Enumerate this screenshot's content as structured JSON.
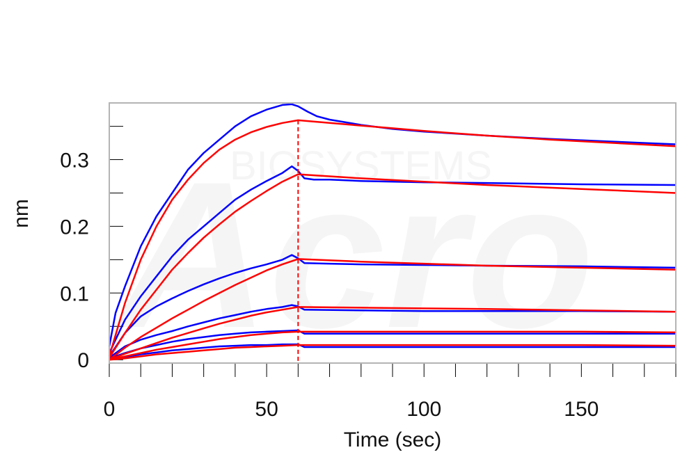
{
  "chart_data": {
    "type": "line",
    "title": "",
    "xlabel": "Time (sec)",
    "ylabel": "nm",
    "xlim": [
      0,
      180
    ],
    "ylim": [
      -0.005,
      0.385
    ],
    "x_ticks": [
      0,
      50,
      100,
      150
    ],
    "x_tick_labels": [
      "0",
      "50",
      "100",
      "150"
    ],
    "x_minor_step": 10,
    "y_ticks": [
      0,
      0.1,
      0.2,
      0.3
    ],
    "y_tick_labels": [
      "0",
      "0.1",
      "0.2",
      "0.3"
    ],
    "y_minor_step": 0.05,
    "association_end": 60,
    "colors": {
      "measured": "#0000ff",
      "fit": "#ff0000",
      "frame": "#b4b4b4"
    },
    "series": [
      {
        "measured": {
          "x": [
            0,
            2,
            5,
            10,
            15,
            20,
            25,
            30,
            35,
            40,
            45,
            50,
            55,
            58,
            60,
            63,
            66,
            70,
            80,
            90,
            100,
            120,
            140,
            160,
            180
          ],
          "y": [
            0.02,
            0.07,
            0.11,
            0.17,
            0.215,
            0.25,
            0.285,
            0.31,
            0.33,
            0.35,
            0.365,
            0.375,
            0.382,
            0.383,
            0.38,
            0.372,
            0.365,
            0.36,
            0.352,
            0.346,
            0.342,
            0.336,
            0.331,
            0.327,
            0.323
          ]
        },
        "fit": {
          "x": [
            0,
            5,
            10,
            15,
            20,
            25,
            30,
            35,
            40,
            45,
            50,
            55,
            60,
            70,
            80,
            90,
            100,
            120,
            140,
            160,
            180
          ],
          "y": [
            0.005,
            0.085,
            0.15,
            0.2,
            0.24,
            0.27,
            0.295,
            0.315,
            0.33,
            0.341,
            0.349,
            0.355,
            0.359,
            0.355,
            0.351,
            0.347,
            0.343,
            0.336,
            0.33,
            0.325,
            0.32
          ]
        }
      },
      {
        "measured": {
          "x": [
            0,
            5,
            10,
            15,
            20,
            25,
            30,
            35,
            40,
            45,
            50,
            55,
            58,
            60,
            62,
            65,
            70,
            80,
            100,
            120,
            150,
            180
          ],
          "y": [
            0.01,
            0.06,
            0.095,
            0.125,
            0.155,
            0.18,
            0.2,
            0.22,
            0.24,
            0.255,
            0.268,
            0.28,
            0.29,
            0.283,
            0.272,
            0.27,
            0.27,
            0.268,
            0.266,
            0.265,
            0.263,
            0.262
          ]
        },
        "fit": {
          "x": [
            0,
            5,
            10,
            15,
            20,
            25,
            30,
            35,
            40,
            45,
            50,
            55,
            60,
            70,
            80,
            100,
            120,
            150,
            180
          ],
          "y": [
            0.003,
            0.04,
            0.075,
            0.105,
            0.135,
            0.16,
            0.183,
            0.203,
            0.222,
            0.238,
            0.253,
            0.267,
            0.278,
            0.275,
            0.272,
            0.267,
            0.262,
            0.256,
            0.25
          ]
        }
      },
      {
        "measured": {
          "x": [
            0,
            5,
            10,
            15,
            20,
            25,
            30,
            35,
            40,
            45,
            50,
            55,
            58,
            60,
            62,
            70,
            80,
            100,
            120,
            150,
            180
          ],
          "y": [
            0.005,
            0.04,
            0.065,
            0.08,
            0.092,
            0.103,
            0.113,
            0.122,
            0.13,
            0.137,
            0.143,
            0.15,
            0.157,
            0.152,
            0.145,
            0.144,
            0.143,
            0.142,
            0.141,
            0.14,
            0.138
          ]
        },
        "fit": {
          "x": [
            0,
            5,
            10,
            15,
            20,
            25,
            30,
            35,
            40,
            45,
            50,
            55,
            60,
            80,
            100,
            120,
            150,
            180
          ],
          "y": [
            0.0,
            0.018,
            0.034,
            0.048,
            0.062,
            0.075,
            0.088,
            0.1,
            0.112,
            0.123,
            0.134,
            0.143,
            0.151,
            0.147,
            0.144,
            0.141,
            0.138,
            0.135
          ]
        }
      },
      {
        "measured": {
          "x": [
            0,
            5,
            10,
            15,
            20,
            25,
            30,
            35,
            40,
            45,
            50,
            55,
            58,
            60,
            62,
            80,
            100,
            120,
            150,
            180
          ],
          "y": [
            0.003,
            0.02,
            0.03,
            0.037,
            0.043,
            0.05,
            0.056,
            0.062,
            0.067,
            0.072,
            0.076,
            0.079,
            0.082,
            0.08,
            0.075,
            0.074,
            0.073,
            0.073,
            0.073,
            0.072
          ]
        },
        "fit": {
          "x": [
            0,
            5,
            10,
            15,
            20,
            25,
            30,
            35,
            40,
            45,
            50,
            55,
            60,
            80,
            100,
            120,
            150,
            180
          ],
          "y": [
            0.0,
            0.009,
            0.017,
            0.025,
            0.033,
            0.04,
            0.047,
            0.054,
            0.06,
            0.066,
            0.071,
            0.075,
            0.079,
            0.078,
            0.077,
            0.076,
            0.074,
            0.072
          ]
        }
      },
      {
        "measured": {
          "x": [
            0,
            5,
            10,
            15,
            20,
            25,
            30,
            35,
            40,
            45,
            50,
            55,
            60,
            62,
            80,
            100,
            120,
            150,
            180
          ],
          "y": [
            0.002,
            0.01,
            0.017,
            0.022,
            0.027,
            0.031,
            0.034,
            0.037,
            0.039,
            0.041,
            0.042,
            0.043,
            0.044,
            0.039,
            0.039,
            0.039,
            0.039,
            0.039,
            0.039
          ]
        },
        "fit": {
          "x": [
            0,
            5,
            10,
            15,
            20,
            25,
            30,
            35,
            40,
            45,
            50,
            55,
            60,
            80,
            100,
            120,
            150,
            180
          ],
          "y": [
            0.0,
            0.005,
            0.01,
            0.015,
            0.019,
            0.023,
            0.027,
            0.031,
            0.034,
            0.037,
            0.039,
            0.041,
            0.042,
            0.042,
            0.042,
            0.042,
            0.042,
            0.041
          ]
        }
      },
      {
        "measured": {
          "x": [
            0,
            5,
            10,
            15,
            20,
            25,
            30,
            35,
            40,
            45,
            50,
            55,
            60,
            62,
            80,
            100,
            120,
            150,
            180
          ],
          "y": [
            0.001,
            0.004,
            0.008,
            0.011,
            0.014,
            0.016,
            0.018,
            0.02,
            0.021,
            0.022,
            0.022,
            0.023,
            0.023,
            0.019,
            0.019,
            0.019,
            0.019,
            0.019,
            0.019
          ]
        },
        "fit": {
          "x": [
            0,
            5,
            10,
            15,
            20,
            25,
            30,
            35,
            40,
            45,
            50,
            55,
            60,
            80,
            100,
            120,
            150,
            180
          ],
          "y": [
            0.0,
            0.002,
            0.005,
            0.008,
            0.01,
            0.012,
            0.014,
            0.016,
            0.018,
            0.019,
            0.02,
            0.021,
            0.022,
            0.022,
            0.022,
            0.022,
            0.022,
            0.021
          ]
        }
      }
    ]
  }
}
